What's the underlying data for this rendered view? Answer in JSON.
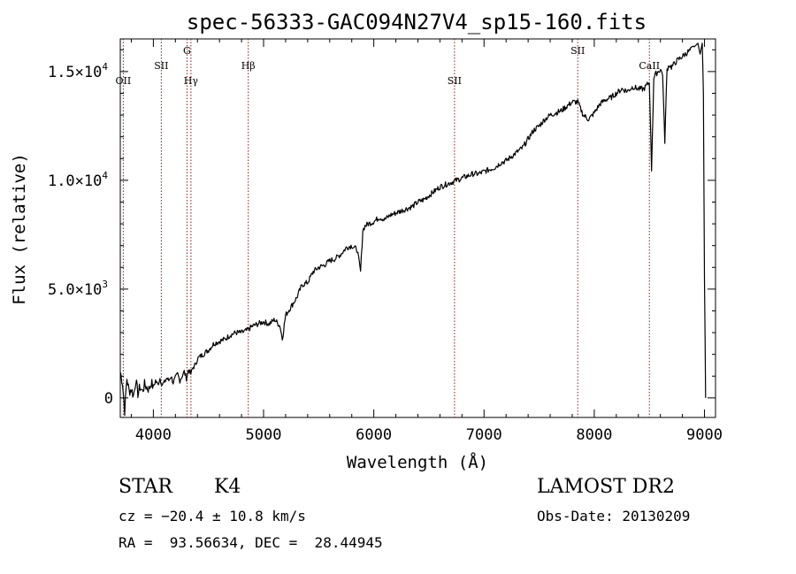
{
  "chart_data": {
    "type": "line",
    "title": "spec-56333-GAC094N27V4_sp15-160.fits",
    "xlabel": "Wavelength (Å)",
    "ylabel": "Flux (relative)",
    "xlim": [
      3700,
      9100
    ],
    "ylim": [
      -900,
      16500
    ],
    "x_ticks": [
      {
        "v": 4000,
        "label": "4000"
      },
      {
        "v": 5000,
        "label": "5000"
      },
      {
        "v": 6000,
        "label": "6000"
      },
      {
        "v": 7000,
        "label": "7000"
      },
      {
        "v": 8000,
        "label": "8000"
      },
      {
        "v": 9000,
        "label": "9000"
      }
    ],
    "y_ticks": [
      {
        "v": 0,
        "label": "0"
      },
      {
        "v": 5000,
        "label": "5.0×10",
        "exp": "3"
      },
      {
        "v": 10000,
        "label": "1.0×10",
        "exp": "4"
      },
      {
        "v": 15000,
        "label": "1.5×10",
        "exp": "4"
      }
    ],
    "grid": false,
    "line_color": "#000000",
    "marker_color": "#8b1a1a",
    "spectral_lines": [
      {
        "name": "OII",
        "wavelength": 3727,
        "level": "low"
      },
      {
        "name": "SII",
        "wavelength": 4072,
        "level": "mid"
      },
      {
        "name": "Hγ",
        "wavelength": 4341,
        "level": "low"
      },
      {
        "name": "G",
        "wavelength": 4305,
        "level": "high"
      },
      {
        "name": "Hβ",
        "wavelength": 4861,
        "level": "mid"
      },
      {
        "name": "SII",
        "wavelength": 6732,
        "level": "low"
      },
      {
        "name": "SII",
        "wavelength": 7850,
        "level": "high"
      },
      {
        "name": "CaII",
        "wavelength": 8500,
        "level": "mid"
      }
    ],
    "series": [
      {
        "x": [
          3700,
          3720,
          3740,
          3760,
          3780,
          3800,
          3820,
          3840,
          3860,
          3880,
          3900,
          3920,
          3940,
          3960,
          3980,
          4000,
          4020,
          4040,
          4060,
          4080,
          4100,
          4120,
          4140,
          4160,
          4180,
          4200,
          4220,
          4240,
          4260,
          4280,
          4300,
          4320,
          4340,
          4360,
          4380,
          4400,
          4450,
          4500,
          4550,
          4600,
          4650,
          4700,
          4750,
          4800,
          4850,
          4900,
          4950,
          5000,
          5050,
          5100,
          5150,
          5170,
          5200,
          5250,
          5300,
          5350,
          5400,
          5450,
          5500,
          5550,
          5600,
          5650,
          5700,
          5750,
          5800,
          5850,
          5880,
          5900,
          5920,
          5950,
          6000,
          6050,
          6100,
          6150,
          6200,
          6250,
          6300,
          6350,
          6400,
          6450,
          6500,
          6550,
          6600,
          6650,
          6700,
          6750,
          6800,
          6850,
          6900,
          6950,
          7000,
          7050,
          7100,
          7150,
          7200,
          7250,
          7300,
          7350,
          7400,
          7450,
          7500,
          7550,
          7600,
          7650,
          7700,
          7750,
          7800,
          7850,
          7900,
          7950,
          8000,
          8050,
          8100,
          8150,
          8200,
          8250,
          8300,
          8350,
          8400,
          8450,
          8480,
          8500,
          8520,
          8540,
          8560,
          8580,
          8600,
          8620,
          8640,
          8660,
          8680,
          8700,
          8750,
          8800,
          8850,
          8900,
          8920,
          8940,
          8960,
          8980,
          8990,
          9000,
          9010
        ],
        "y": [
          1200,
          700,
          -600,
          900,
          300,
          400,
          100,
          800,
          200,
          500,
          300,
          600,
          500,
          400,
          700,
          500,
          800,
          600,
          900,
          600,
          700,
          900,
          800,
          1000,
          700,
          900,
          1100,
          800,
          1000,
          1200,
          900,
          1300,
          1100,
          1400,
          1500,
          1800,
          2000,
          2200,
          2500,
          2600,
          2700,
          2900,
          3000,
          3000,
          3100,
          3300,
          3400,
          3500,
          3400,
          3600,
          3300,
          2700,
          3800,
          4200,
          4600,
          5200,
          5300,
          5800,
          6000,
          6100,
          6300,
          6400,
          6600,
          6900,
          7000,
          6800,
          5800,
          7700,
          7900,
          8000,
          8100,
          8300,
          8200,
          8400,
          8500,
          8600,
          8700,
          8800,
          9000,
          9100,
          9300,
          9500,
          9700,
          9800,
          9900,
          10000,
          10100,
          10200,
          10300,
          10300,
          10400,
          10500,
          10600,
          10800,
          10900,
          11100,
          11300,
          11500,
          11900,
          12300,
          12500,
          12800,
          13000,
          13100,
          13200,
          13400,
          13600,
          13600,
          13000,
          12800,
          13100,
          13500,
          13700,
          13800,
          14000,
          14200,
          14100,
          14300,
          14200,
          14200,
          14400,
          14500,
          10500,
          14700,
          14900,
          15000,
          15100,
          14900,
          11800,
          15100,
          15300,
          15200,
          15500,
          15700,
          15900,
          16100,
          16200,
          16300,
          15800,
          16300,
          14000,
          5500,
          0
        ]
      }
    ]
  },
  "info": {
    "object_type": "STAR",
    "subclass": "K4",
    "survey": "LAMOST DR2",
    "cz": "cz = −20.4 ± 10.8 km/s",
    "obs_date": "Obs-Date: 20130209",
    "coords": "RA =  93.56634, DEC =  28.44945"
  }
}
